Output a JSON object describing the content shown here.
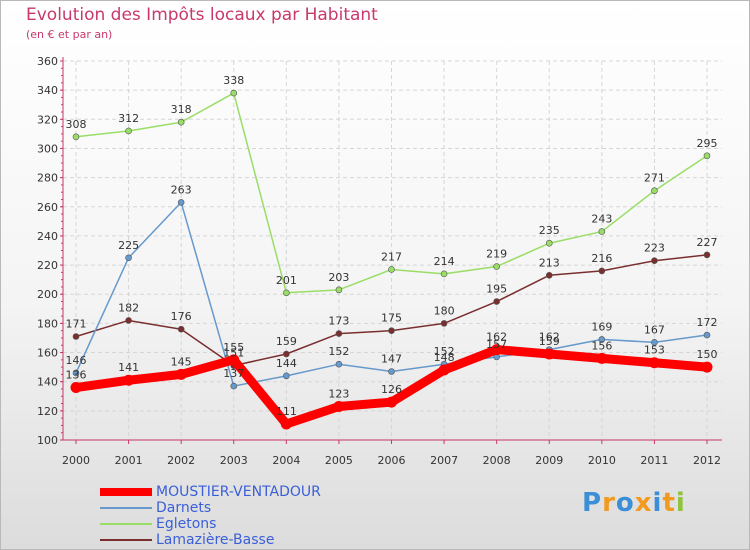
{
  "title": "Evolution des Impôts locaux par Habitant",
  "subtitle": "(en € et par an)",
  "logo_text": "Proxiti",
  "chart_data": {
    "type": "line",
    "title": "Evolution des Impôts locaux par Habitant",
    "subtitle": "(en € et par an)",
    "xlabel": "",
    "ylabel": "",
    "x": [
      "2000",
      "2001",
      "2002",
      "2003",
      "2004",
      "2005",
      "2006",
      "2007",
      "2008",
      "2009",
      "2010",
      "2011",
      "2012"
    ],
    "ylim": [
      100,
      360
    ],
    "yticks": [
      100,
      120,
      140,
      160,
      180,
      200,
      220,
      240,
      260,
      280,
      300,
      320,
      340,
      360
    ],
    "grid": true,
    "series": [
      {
        "name": "MOUSTIER-VENTADOUR",
        "color": "#ff0000",
        "values": [
          136,
          141,
          145,
          155,
          111,
          123,
          126,
          148,
          162,
          159,
          156,
          153,
          150
        ]
      },
      {
        "name": "Darnets",
        "color": "#6699cc",
        "values": [
          146,
          225,
          263,
          137,
          144,
          152,
          147,
          152,
          157,
          162,
          169,
          167,
          172
        ]
      },
      {
        "name": "Egletons",
        "color": "#99dd66",
        "values": [
          308,
          312,
          318,
          338,
          201,
          203,
          217,
          214,
          219,
          235,
          243,
          271,
          295
        ]
      },
      {
        "name": "Lamazière-Basse",
        "color": "#7a2f2f",
        "values": [
          171,
          182,
          176,
          151,
          159,
          173,
          175,
          180,
          195,
          213,
          216,
          223,
          227
        ]
      }
    ]
  }
}
